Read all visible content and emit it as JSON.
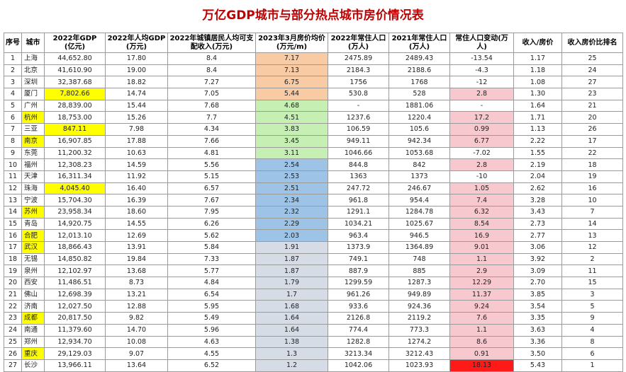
{
  "title": "万亿GDP城市与部分热点城市房价情况表",
  "headers": [
    "序号",
    "城市",
    "2022年GDP\n(亿元)",
    "2022年人均GDP\n(万元)",
    "2022年城镇居民人均可支配收入(万元)",
    "2023年3月房价均价(万元/m)",
    "2022年常住人口(万人)",
    "2021年常住人口\n(万人)",
    "常住人口变动(万人)",
    "收入/房价",
    "收入房价比排名"
  ],
  "rows": [
    {
      "no": "1",
      "city": "上海",
      "gdp": "44,652.80",
      "pgdp": "17.80",
      "income": "8.4",
      "price": "7.17",
      "pop22": "2475.89",
      "pop21": "2489.43",
      "change": "-13.54",
      "ratio": "1.17",
      "rank": "25"
    },
    {
      "no": "2",
      "city": "北京",
      "gdp": "41,610.90",
      "pgdp": "19.00",
      "income": "8.4",
      "price": "7.13",
      "pop22": "2184.3",
      "pop21": "2188.6",
      "change": "-4.3",
      "ratio": "1.18",
      "rank": "24"
    },
    {
      "no": "3",
      "city": "深圳",
      "gdp": "32,387.68",
      "pgdp": "18.82",
      "income": "7.27",
      "price": "6.75",
      "pop22": "1756",
      "pop21": "1768",
      "change": "-12",
      "ratio": "1.08",
      "rank": "27"
    },
    {
      "no": "4",
      "city": "厦门",
      "gdp": "7,802.66",
      "pgdp": "14.74",
      "income": "7.05",
      "price": "5.44",
      "pop22": "530.8",
      "pop21": "528",
      "change": "2.8",
      "ratio": "1.30",
      "rank": "23"
    },
    {
      "no": "5",
      "city": "广州",
      "gdp": "28,839.00",
      "pgdp": "15.44",
      "income": "7.68",
      "price": "4.68",
      "pop22": "-",
      "pop21": "1881.06",
      "change": "-",
      "ratio": "1.64",
      "rank": "21"
    },
    {
      "no": "6",
      "city": "杭州",
      "gdp": "18,753.00",
      "pgdp": "15.26",
      "income": "7.7",
      "price": "4.51",
      "pop22": "1237.6",
      "pop21": "1220.4",
      "change": "17.2",
      "ratio": "1.71",
      "rank": "20"
    },
    {
      "no": "7",
      "city": "三亚",
      "gdp": "847.11",
      "pgdp": "7.98",
      "income": "4.34",
      "price": "3.83",
      "pop22": "106.59",
      "pop21": "105.6",
      "change": "0.99",
      "ratio": "1.13",
      "rank": "26"
    },
    {
      "no": "8",
      "city": "南京",
      "gdp": "16,907.85",
      "pgdp": "17.88",
      "income": "7.66",
      "price": "3.45",
      "pop22": "949.11",
      "pop21": "942.34",
      "change": "6.77",
      "ratio": "2.22",
      "rank": "17"
    },
    {
      "no": "9",
      "city": "东莞",
      "gdp": "11,200.32",
      "pgdp": "10.63",
      "income": "4.81",
      "price": "3.11",
      "pop22": "1046.66",
      "pop21": "1053.68",
      "change": "-7.02",
      "ratio": "1.55",
      "rank": "22"
    },
    {
      "no": "10",
      "city": "福州",
      "gdp": "12,308.23",
      "pgdp": "14.59",
      "income": "5.56",
      "price": "2.54",
      "pop22": "844.8",
      "pop21": "842",
      "change": "2.8",
      "ratio": "2.19",
      "rank": "18"
    },
    {
      "no": "11",
      "city": "天津",
      "gdp": "16,311.34",
      "pgdp": "11.92",
      "income": "5.15",
      "price": "2.53",
      "pop22": "1363",
      "pop21": "1373",
      "change": "-10",
      "ratio": "2.04",
      "rank": "19"
    },
    {
      "no": "12",
      "city": "珠海",
      "gdp": "4,045.40",
      "pgdp": "16.40",
      "income": "6.57",
      "price": "2.51",
      "pop22": "247.72",
      "pop21": "246.67",
      "change": "1.05",
      "ratio": "2.62",
      "rank": "16"
    },
    {
      "no": "13",
      "city": "宁波",
      "gdp": "15,704.30",
      "pgdp": "16.39",
      "income": "7.67",
      "price": "2.34",
      "pop22": "961.8",
      "pop21": "954.4",
      "change": "7.4",
      "ratio": "3.28",
      "rank": "10"
    },
    {
      "no": "14",
      "city": "苏州",
      "gdp": "23,958.34",
      "pgdp": "18.60",
      "income": "7.95",
      "price": "2.32",
      "pop22": "1291.1",
      "pop21": "1284.78",
      "change": "6.32",
      "ratio": "3.43",
      "rank": "7"
    },
    {
      "no": "15",
      "city": "青岛",
      "gdp": "14,920.75",
      "pgdp": "14.55",
      "income": "6.26",
      "price": "2.29",
      "pop22": "1034.21",
      "pop21": "1025.67",
      "change": "8.54",
      "ratio": "2.73",
      "rank": "14"
    },
    {
      "no": "16",
      "city": "合肥",
      "gdp": "12,013.10",
      "pgdp": "12.69",
      "income": "5.62",
      "price": "2.03",
      "pop22": "963.4",
      "pop21": "946.5",
      "change": "16.9",
      "ratio": "2.77",
      "rank": "13"
    },
    {
      "no": "17",
      "city": "武汉",
      "gdp": "18,866.43",
      "pgdp": "13.91",
      "income": "5.84",
      "price": "1.91",
      "pop22": "1373.9",
      "pop21": "1364.89",
      "change": "9.01",
      "ratio": "3.06",
      "rank": "12"
    },
    {
      "no": "18",
      "city": "无锡",
      "gdp": "14,850.82",
      "pgdp": "19.84",
      "income": "7.33",
      "price": "1.87",
      "pop22": "749.1",
      "pop21": "748",
      "change": "1.1",
      "ratio": "3.92",
      "rank": "2"
    },
    {
      "no": "19",
      "city": "泉州",
      "gdp": "12,102.97",
      "pgdp": "13.68",
      "income": "5.77",
      "price": "1.87",
      "pop22": "887.9",
      "pop21": "885",
      "change": "2.9",
      "ratio": "3.09",
      "rank": "11"
    },
    {
      "no": "20",
      "city": "西安",
      "gdp": "11,486.51",
      "pgdp": "8.73",
      "income": "4.84",
      "price": "1.79",
      "pop22": "1299.59",
      "pop21": "1287.3",
      "change": "12.29",
      "ratio": "2.70",
      "rank": "15"
    },
    {
      "no": "21",
      "city": "佛山",
      "gdp": "12,698.39",
      "pgdp": "13.21",
      "income": "6.54",
      "price": "1.7",
      "pop22": "961.26",
      "pop21": "949.89",
      "change": "11.37",
      "ratio": "3.85",
      "rank": "3"
    },
    {
      "no": "22",
      "city": "济南",
      "gdp": "12,027.50",
      "pgdp": "12.88",
      "income": "5.95",
      "price": "1.68",
      "pop22": "933.6",
      "pop21": "924.36",
      "change": "9.24",
      "ratio": "3.54",
      "rank": "5"
    },
    {
      "no": "23",
      "city": "成都",
      "gdp": "20,817.50",
      "pgdp": "9.82",
      "income": "5.49",
      "price": "1.64",
      "pop22": "2126.8",
      "pop21": "2119.2",
      "change": "7.6",
      "ratio": "3.35",
      "rank": "9"
    },
    {
      "no": "24",
      "city": "南通",
      "gdp": "11,379.60",
      "pgdp": "14.70",
      "income": "5.96",
      "price": "1.64",
      "pop22": "774.4",
      "pop21": "773.3",
      "change": "1.1",
      "ratio": "3.63",
      "rank": "4"
    },
    {
      "no": "25",
      "city": "郑州",
      "gdp": "12,934.70",
      "pgdp": "10.08",
      "income": "4.63",
      "price": "1.38",
      "pop22": "1282.8",
      "pop21": "1274.2",
      "change": "8.6",
      "ratio": "3.36",
      "rank": "8"
    },
    {
      "no": "26",
      "city": "重庆",
      "gdp": "29,129.03",
      "pgdp": "9.07",
      "income": "4.55",
      "price": "1.3",
      "pop22": "3213.34",
      "pop21": "3212.43",
      "change": "0.91",
      "ratio": "3.50",
      "rank": "6"
    },
    {
      "no": "27",
      "city": "长沙",
      "gdp": "13,966.11",
      "pgdp": "13.64",
      "income": "6.52",
      "price": "1.2",
      "pop22": "1042.06",
      "pop21": "1023.93",
      "change": "18.13",
      "ratio": "5.43",
      "rank": "1"
    }
  ],
  "highlight_colors": {
    "yellow": "#ffff00",
    "orange": "#f8cba4",
    "green": "#c6efb3",
    "blue": "#9dc3e6",
    "gray": "#d6dce5",
    "pink": "#f8c8cf",
    "red": "#ff1a1a",
    "title": "#c00000"
  }
}
